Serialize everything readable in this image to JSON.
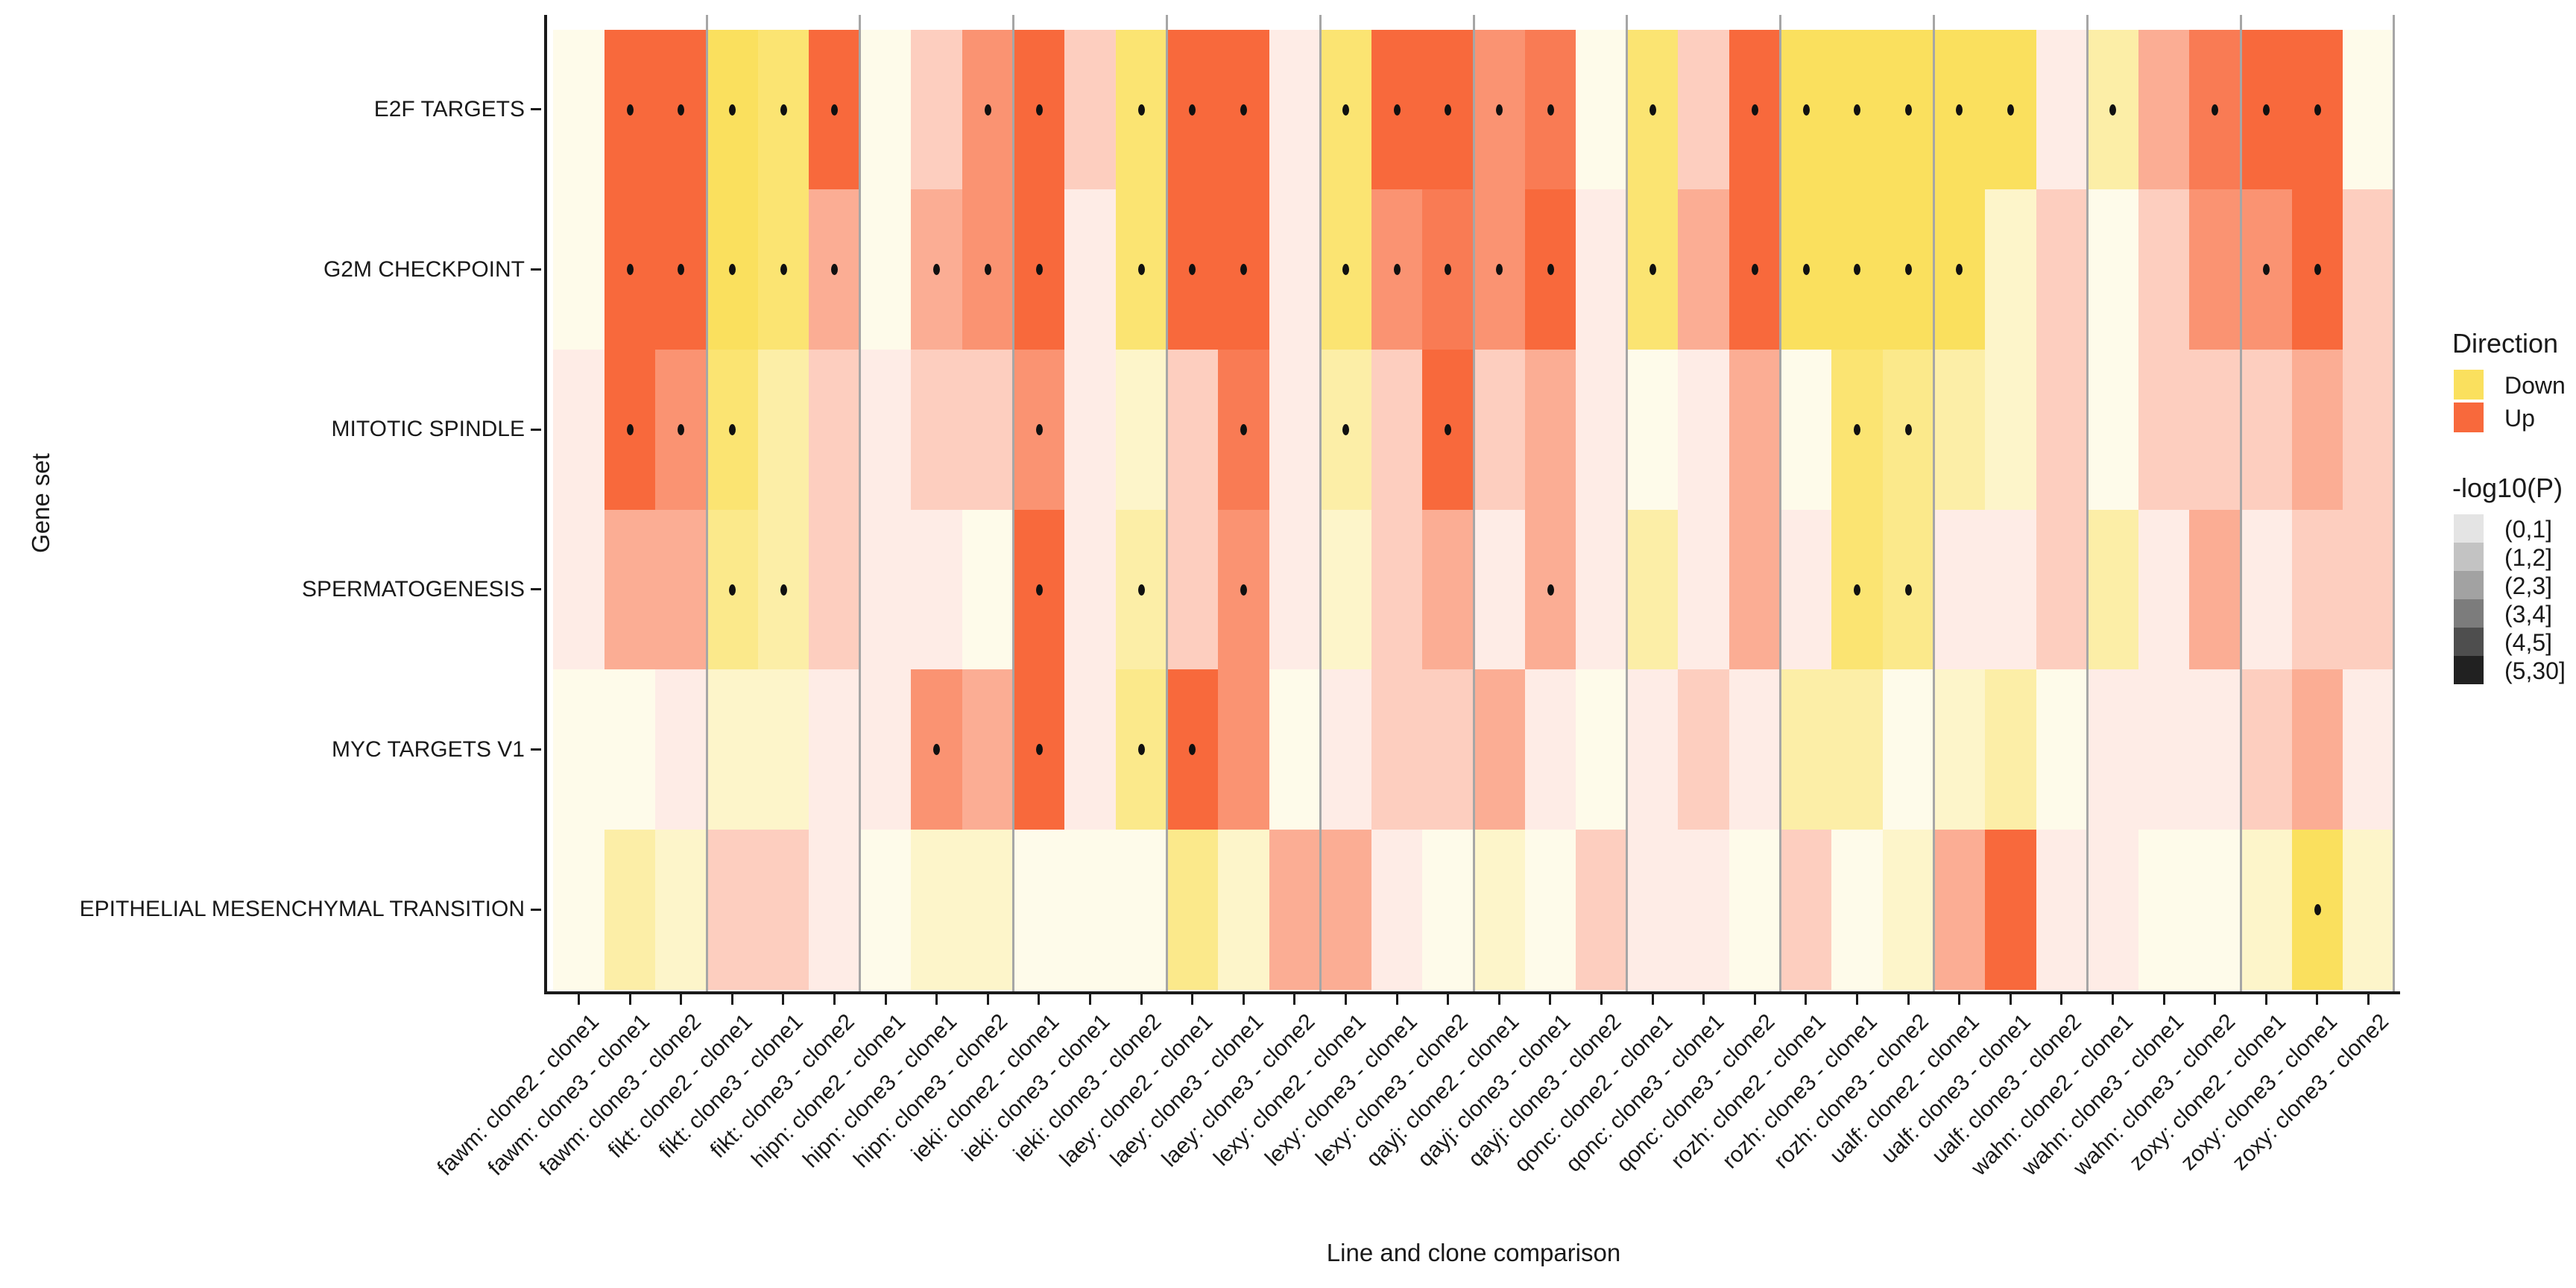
{
  "figure": {
    "x_axis_title": "Line and clone comparison",
    "y_axis_title": "Gene set"
  },
  "legend": {
    "direction": {
      "title": "Direction",
      "items": [
        {
          "label": "Down",
          "color": "#FAE05E"
        },
        {
          "label": "Up",
          "color": "#F8693C"
        }
      ]
    },
    "pvalue": {
      "title": "-log10(P)",
      "items": [
        {
          "label": "(0,1]",
          "color": "#E4E4E4"
        },
        {
          "label": "(1,2]",
          "color": "#C3C3C3"
        },
        {
          "label": "(2,3]",
          "color": "#A2A2A2"
        },
        {
          "label": "(3,4]",
          "color": "#7C7C7C"
        },
        {
          "label": "(4,5]",
          "color": "#4E4E4E"
        },
        {
          "label": "(5,30]",
          "color": "#212121"
        }
      ]
    }
  },
  "chart_data": {
    "type": "heatmap",
    "title": "",
    "xlabel": "Line and clone comparison",
    "ylabel": "Gene set",
    "legend_position": "right",
    "grid": false,
    "x_categories": [
      "fawm: clone2 - clone1",
      "fawm: clone3 - clone1",
      "fawm: clone3 - clone2",
      "fikt: clone2 - clone1",
      "fikt: clone3 - clone1",
      "fikt: clone3 - clone2",
      "hipn: clone2 - clone1",
      "hipn: clone3 - clone1",
      "hipn: clone3 - clone2",
      "ieki: clone2 - clone1",
      "ieki: clone3 - clone1",
      "ieki: clone3 - clone2",
      "laey: clone2 - clone1",
      "laey: clone3 - clone1",
      "laey: clone3 - clone2",
      "lexy: clone2 - clone1",
      "lexy: clone3 - clone1",
      "lexy: clone3 - clone2",
      "qayj: clone2 - clone1",
      "qayj: clone3 - clone1",
      "qayj: clone3 - clone2",
      "qonc: clone2 - clone1",
      "qonc: clone3 - clone1",
      "qonc: clone3 - clone2",
      "rozh: clone2 - clone1",
      "rozh: clone3 - clone1",
      "rozh: clone3 - clone2",
      "ualf: clone2 - clone1",
      "ualf: clone3 - clone1",
      "ualf: clone3 - clone2",
      "wahn: clone2 - clone1",
      "wahn: clone3 - clone1",
      "wahn: clone3 - clone2",
      "zoxy: clone2 - clone1",
      "zoxy: clone3 - clone1",
      "zoxy: clone3 - clone2"
    ],
    "y_categories": [
      "E2F TARGETS",
      "G2M CHECKPOINT",
      "MITOTIC SPINDLE",
      "SPERMATOGENESIS",
      "MYC TARGETS V1",
      "EPITHELIAL MESENCHYMAL TRANSITION"
    ],
    "direction_colors": {
      "down": "#FAE05E",
      "up": "#F8693C"
    },
    "alpha_bins": {
      "labels": [
        "(0,1]",
        "(1,2]",
        "(2,3]",
        "(3,4]",
        "(4,5]",
        "(5,30]"
      ],
      "opacity": [
        0.13,
        0.33,
        0.55,
        0.72,
        0.88,
        1.0
      ]
    },
    "cell_encoding": "direction letter (u=Up, d=Down) + -log10(P) bin 1-6 + optional 's' = significance dot",
    "cells": [
      [
        "d1",
        "u6s",
        "u6s",
        "d6s",
        "d5s",
        "u6s",
        "d1",
        "u2",
        "u4s",
        "u6s",
        "u2",
        "d5s",
        "u6s",
        "u6s",
        "u1",
        "d5s",
        "u6s",
        "u6s",
        "u4s",
        "u5s",
        "d1",
        "d5s",
        "u2",
        "u6s",
        "d6s",
        "d6s",
        "d6s",
        "d6s",
        "d6s",
        "u1",
        "d3s",
        "u3",
        "u5s",
        "u6s",
        "u6s",
        "d1"
      ],
      [
        "d1",
        "u6s",
        "u6s",
        "d6s",
        "d5s",
        "u3s",
        "d1",
        "u3s",
        "u4s",
        "u6s",
        "u1",
        "d5s",
        "u6s",
        "u6s",
        "u1",
        "d5s",
        "u4s",
        "u5s",
        "u4s",
        "u6s",
        "u1",
        "d5s",
        "u3",
        "u6s",
        "d6s",
        "d6s",
        "d6s",
        "d6s",
        "d2",
        "u2",
        "d1",
        "u2",
        "u4",
        "u4s",
        "u6s",
        "u2"
      ],
      [
        "u1",
        "u6s",
        "u4s",
        "d5s",
        "d3",
        "u2",
        "u1",
        "u2",
        "u2",
        "u4s",
        "u1",
        "d2",
        "u2",
        "u5s",
        "u1",
        "d3s",
        "u2",
        "u6s",
        "u2",
        "u3",
        "u1",
        "d1",
        "u1",
        "u3",
        "d1",
        "d5s",
        "d4s",
        "d3",
        "d2",
        "u2",
        "d1",
        "u2",
        "u2",
        "u2",
        "u3",
        "u2"
      ],
      [
        "u1",
        "u3",
        "u3",
        "d4s",
        "d3s",
        "u2",
        "u1",
        "u1",
        "d1",
        "u6s",
        "u1",
        "d3s",
        "u2",
        "u4s",
        "u1",
        "d2",
        "u2",
        "u3",
        "u1",
        "u3s",
        "u1",
        "d3",
        "u1",
        "u3",
        "u1",
        "d5s",
        "d4s",
        "u1",
        "u1",
        "u2",
        "d3",
        "u1",
        "u3",
        "u1",
        "u2",
        "u2"
      ],
      [
        "d1",
        "d1",
        "u1",
        "d2",
        "d2",
        "u1",
        "u1",
        "u4s",
        "u3",
        "u6s",
        "u1",
        "d4s",
        "u6s",
        "u4",
        "d1",
        "u1",
        "u2",
        "u2",
        "u3",
        "u1",
        "d1",
        "u1",
        "u2",
        "u1",
        "d3",
        "d3",
        "d1",
        "d2",
        "d3",
        "d1",
        "u1",
        "u1",
        "u1",
        "u2",
        "u3",
        "u1"
      ],
      [
        "d1",
        "d3",
        "d2",
        "u2",
        "u2",
        "u1",
        "d1",
        "d2",
        "d2",
        "d1",
        "d1",
        "d1",
        "d4",
        "d2",
        "u3",
        "u3",
        "u1",
        "d1",
        "d2",
        "d1",
        "u2",
        "u1",
        "u1",
        "d1",
        "u2",
        "d1",
        "d2",
        "u3",
        "u6",
        "u1",
        "u1",
        "d1",
        "d1",
        "d2",
        "d6s",
        "d2"
      ]
    ]
  }
}
